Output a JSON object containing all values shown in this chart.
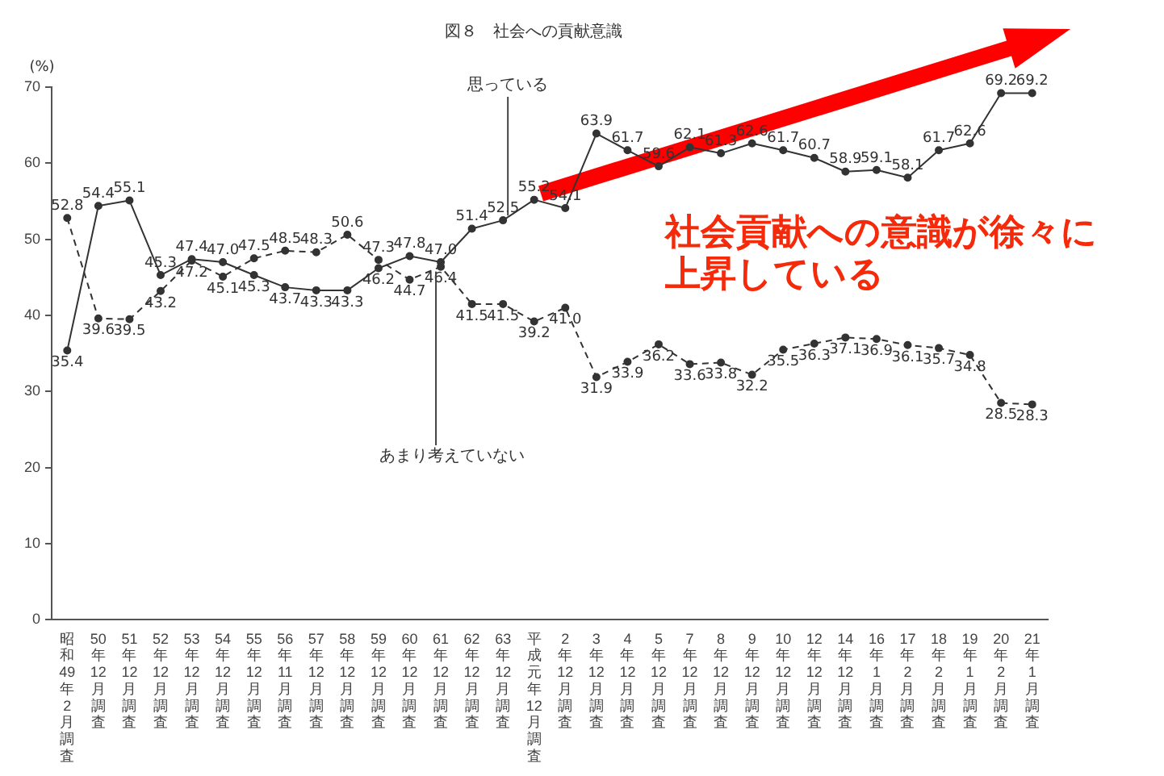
{
  "chart_data": {
    "type": "line",
    "title": "図８　社会への貢献意識",
    "ylabel": "(%)",
    "categories": [
      "昭和49年2月調査",
      "50年12月調査",
      "51年12月調査",
      "52年12月調査",
      "53年12月調査",
      "54年12月調査",
      "55年12月調査",
      "56年11月調査",
      "57年12月調査",
      "58年12月調査",
      "59年12月調査",
      "60年12月調査",
      "61年12月調査",
      "62年12月調査",
      "63年12月調査",
      "平成元年12月調査",
      "2年12月調査",
      "3年12月調査",
      "4年12月調査",
      "5年12月調査",
      "7年12月調査",
      "8年12月調査",
      "9年12月調査",
      "10年12月調査",
      "12年12月調査",
      "14年12月調査",
      "16年1月調査",
      "17年2月調査",
      "18年2月調査",
      "19年1月調査",
      "20年2月調査",
      "21年1月調査"
    ],
    "series": [
      {
        "name": "思っている",
        "color": "#333333",
        "line_style": "solid",
        "value_labels": [
          "35.4",
          "54.4",
          "55.1",
          "45.3",
          "47.4",
          "47.0",
          "45.3",
          "43.7",
          "43.3",
          "43.3",
          "46.2",
          "47.8",
          "47.0",
          "51.4",
          "52.5",
          "55.2",
          "54.1",
          "63.9",
          "61.7",
          "59.6",
          "62.1",
          "61.3",
          "62.6",
          "61.7",
          "60.7",
          "58.9",
          "59.1",
          "58.1",
          "61.7",
          "62.6",
          "69.2",
          "69.2"
        ],
        "values": [
          35.4,
          54.4,
          55.1,
          45.3,
          47.4,
          47.0,
          45.3,
          43.7,
          43.3,
          43.3,
          46.2,
          47.8,
          47.0,
          51.4,
          52.5,
          55.2,
          54.1,
          63.9,
          61.7,
          59.6,
          62.1,
          61.3,
          62.6,
          61.7,
          60.7,
          58.9,
          59.1,
          58.1,
          61.7,
          62.6,
          69.2,
          69.2
        ]
      },
      {
        "name": "あまり考えていない",
        "color": "#333333",
        "line_style": "dashed",
        "value_labels": [
          "52.8",
          "39.6",
          "39.5",
          "43.2",
          "47.2",
          "45.1",
          "47.5",
          "48.5",
          "48.3",
          "50.6",
          "47.3",
          "44.7",
          "46.4",
          "41.5",
          "41.5",
          "39.2",
          "41.0",
          "31.9",
          "33.9",
          "36.2",
          "33.6",
          "33.8",
          "32.2",
          "35.5",
          "36.3",
          "37.1",
          "36.9",
          "36.1",
          "35.7",
          "34.8",
          "28.5",
          "28.3"
        ],
        "values": [
          52.8,
          39.6,
          39.5,
          43.2,
          47.2,
          45.1,
          47.5,
          48.5,
          48.3,
          50.6,
          47.3,
          44.7,
          46.4,
          41.5,
          41.5,
          39.2,
          41.0,
          31.9,
          33.9,
          36.2,
          33.6,
          33.8,
          32.2,
          35.5,
          36.3,
          37.1,
          36.9,
          36.1,
          35.7,
          34.8,
          28.5,
          28.3
        ]
      }
    ],
    "ylim": [
      0,
      70
    ],
    "yticks": [
      0,
      10,
      20,
      30,
      40,
      50,
      60,
      70
    ],
    "grid": false,
    "legend": false,
    "marker": "circle",
    "annotations": [
      "社会貢献への意識が徐々に上昇している"
    ]
  }
}
